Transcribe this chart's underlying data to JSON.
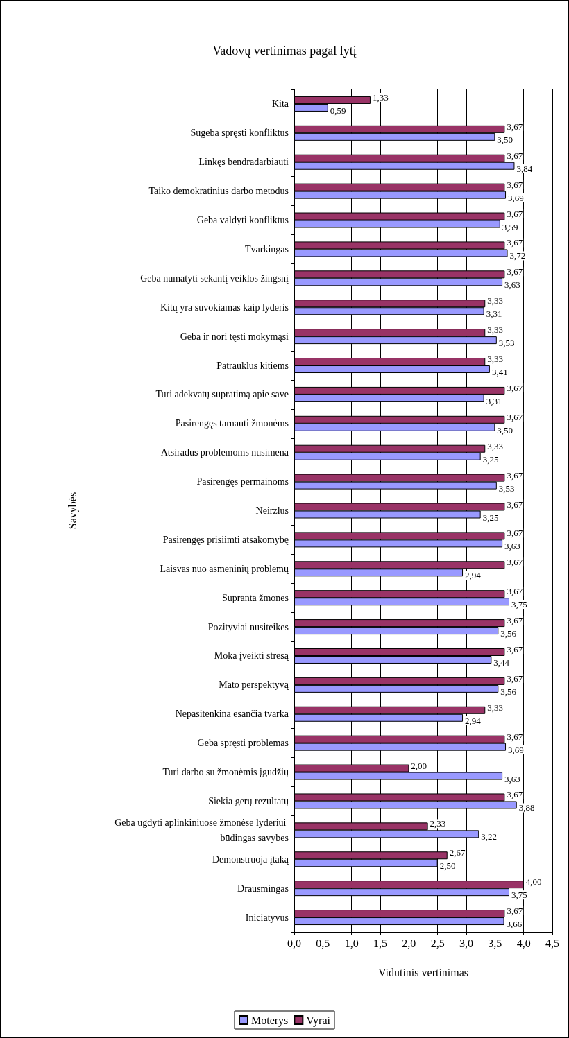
{
  "chart_data": {
    "type": "bar",
    "orientation": "horizontal",
    "title": "Vadovų vertinimas pagal lytį",
    "xlabel": "Vidutinis vertinimas",
    "ylabel": "Savybės",
    "categories": [
      "Kita",
      "Sugeba spręsti konfliktus",
      "Linkęs bendradarbiauti",
      "Taiko demokratinius darbo metodus",
      "Geba valdyti konfliktus",
      "Tvarkingas",
      "Geba numatyti sekantį veiklos žingsnį",
      "Kitų yra suvokiamas kaip lyderis",
      "Geba ir nori tęsti mokymąsi",
      "Patrauklus kitiems",
      "Turi adekvatų supratimą apie save",
      "Pasirengęs tarnauti žmonėms",
      "Atsiradus problemoms nusimena",
      "Pasirengęs permainoms",
      "Neirzlus",
      "Pasirengęs prisiimti atsakomybę",
      "Laisvas nuo asmeninių problemų",
      "Supranta žmones",
      "Pozityviai nusiteikes",
      "Moka įveikti stresą",
      "Mato perspektyvą",
      "Nepasitenkina esančia tvarka",
      "Geba spręsti problemas",
      "Turi darbo su žmonėmis įgudžių",
      "Siekia gerų rezultatų",
      "Geba ugdyti aplinkiniuose žmonėse lyderiui būdingas savybes",
      "Demonstruoja įtaką",
      "Drausmingas",
      "Iniciatyvus"
    ],
    "series": [
      {
        "name": "Moterys",
        "color": "#9999ff",
        "values": [
          0.59,
          3.5,
          3.84,
          3.69,
          3.59,
          3.72,
          3.63,
          3.31,
          3.53,
          3.41,
          3.31,
          3.5,
          3.25,
          3.53,
          3.25,
          3.63,
          2.94,
          3.75,
          3.56,
          3.44,
          3.56,
          2.94,
          3.69,
          3.63,
          3.88,
          3.22,
          2.5,
          3.75,
          3.66
        ],
        "value_labels": [
          "0,59",
          "3,50",
          "3,84",
          "3,69",
          "3,59",
          "3,72",
          "3,63",
          "3,31",
          "3,53",
          "3,41",
          "3,31",
          "3,50",
          "3,25",
          "3,53",
          "3,25",
          "3,63",
          "2,94",
          "3,75",
          "3,56",
          "3,44",
          "3,56",
          "2,94",
          "3,69",
          "3,63",
          "3,88",
          "3,22",
          "2,50",
          "3,75",
          "3,66"
        ]
      },
      {
        "name": "Vyrai",
        "color": "#993366",
        "values": [
          1.33,
          3.67,
          3.67,
          3.67,
          3.67,
          3.67,
          3.67,
          3.33,
          3.33,
          3.33,
          3.67,
          3.67,
          3.33,
          3.67,
          3.67,
          3.67,
          3.67,
          3.67,
          3.67,
          3.67,
          3.67,
          3.33,
          3.67,
          2.0,
          3.67,
          2.33,
          2.67,
          4.0,
          3.67
        ],
        "value_labels": [
          "1,33",
          "3,67",
          "3,67",
          "3,67",
          "3,67",
          "3,67",
          "3,67",
          "3,33",
          "3,33",
          "3,33",
          "3,67",
          "3,67",
          "3,33",
          "3,67",
          "3,67",
          "3,67",
          "3,67",
          "3,67",
          "3,67",
          "3,67",
          "3,67",
          "3,33",
          "3,67",
          "2,00",
          "3,67",
          "2,33",
          "2,67",
          "4,00",
          "3,67"
        ]
      }
    ],
    "xlim": [
      0,
      4.5
    ],
    "xticks": [
      {
        "value": 0,
        "label": "0,0"
      },
      {
        "value": 0.5,
        "label": "0,5"
      },
      {
        "value": 1,
        "label": "1,0"
      },
      {
        "value": 1.5,
        "label": "1,5"
      },
      {
        "value": 2,
        "label": "2,0"
      },
      {
        "value": 2.5,
        "label": "2,5"
      },
      {
        "value": 3,
        "label": "3,0"
      },
      {
        "value": 3.5,
        "label": "3,5"
      },
      {
        "value": 4,
        "label": "4,0"
      },
      {
        "value": 4.5,
        "label": "4,5"
      }
    ],
    "grid": "x",
    "legend": "bottom"
  }
}
